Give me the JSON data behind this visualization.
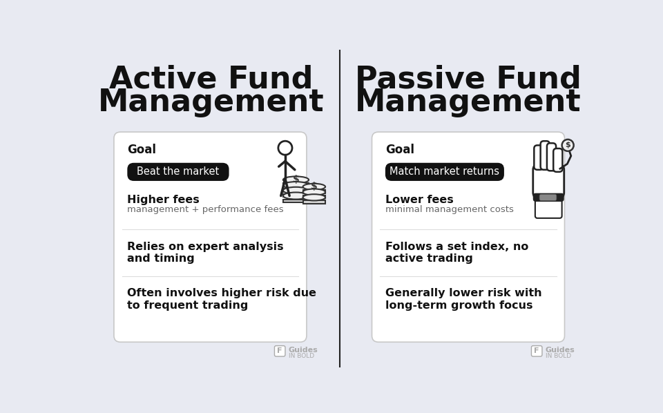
{
  "bg_color": "#e8eaf2",
  "card_color": "#ffffff",
  "divider_color": "#c8c8c8",
  "text_dark": "#111111",
  "text_gray": "#666666",
  "badge_bg": "#111111",
  "badge_text": "#ffffff",
  "left_title_line1": "Active Fund",
  "left_title_line2": "Management",
  "right_title_line1": "Passive Fund",
  "right_title_line2": "Management",
  "left_goal_label": "Goal",
  "right_goal_label": "Goal",
  "left_badge": "Beat the market",
  "right_badge": "Match market returns",
  "left_items": [
    [
      "Higher fees",
      "management + performance fees"
    ],
    [
      "Relies on expert analysis\nand timing",
      ""
    ],
    [
      "Often involves higher risk due\nto frequent trading",
      ""
    ]
  ],
  "right_items": [
    [
      "Lower fees",
      "minimal management costs"
    ],
    [
      "Follows a set index, no\nactive trading",
      ""
    ],
    [
      "Generally lower risk with\nlong-term growth focus",
      ""
    ]
  ],
  "watermark_text1": "Guides",
  "watermark_text2": "IN BOLD",
  "center_line_color": "#222222",
  "item_divider_color": "#dddddd"
}
